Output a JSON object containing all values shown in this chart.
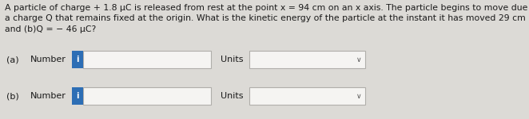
{
  "background_color": "#dcdad6",
  "text_color": "#1a1a1a",
  "title_text_line1": "A particle of charge + 1.8 μC is released from rest at the point x = 94 cm on an x axis. The particle begins to move due to the presence of",
  "title_text_line2": "a charge Q that remains fixed at the origin. What is the kinetic energy of the particle at the instant it has moved 29 cm if (a)Q = + 46 μC",
  "title_text_line3": "and (b)Q = − 46 μC?",
  "title_fontsize": 7.8,
  "row_a_label_part1": "(a)",
  "row_a_label_part2": "Number",
  "row_b_label_part1": "(b)",
  "row_b_label_part2": "Number",
  "units_label": "Units",
  "input_box_color": "#f5f4f2",
  "input_box_border": "#b0aeaa",
  "units_box_color": "#f5f4f2",
  "units_box_border": "#b0aeaa",
  "info_button_color": "#2d6eb5",
  "info_button_text": "i",
  "info_button_text_color": "#ffffff",
  "chevron_color": "#555555",
  "label_fontsize": 8.0,
  "units_fontsize": 8.0,
  "info_fontsize": 7.0
}
